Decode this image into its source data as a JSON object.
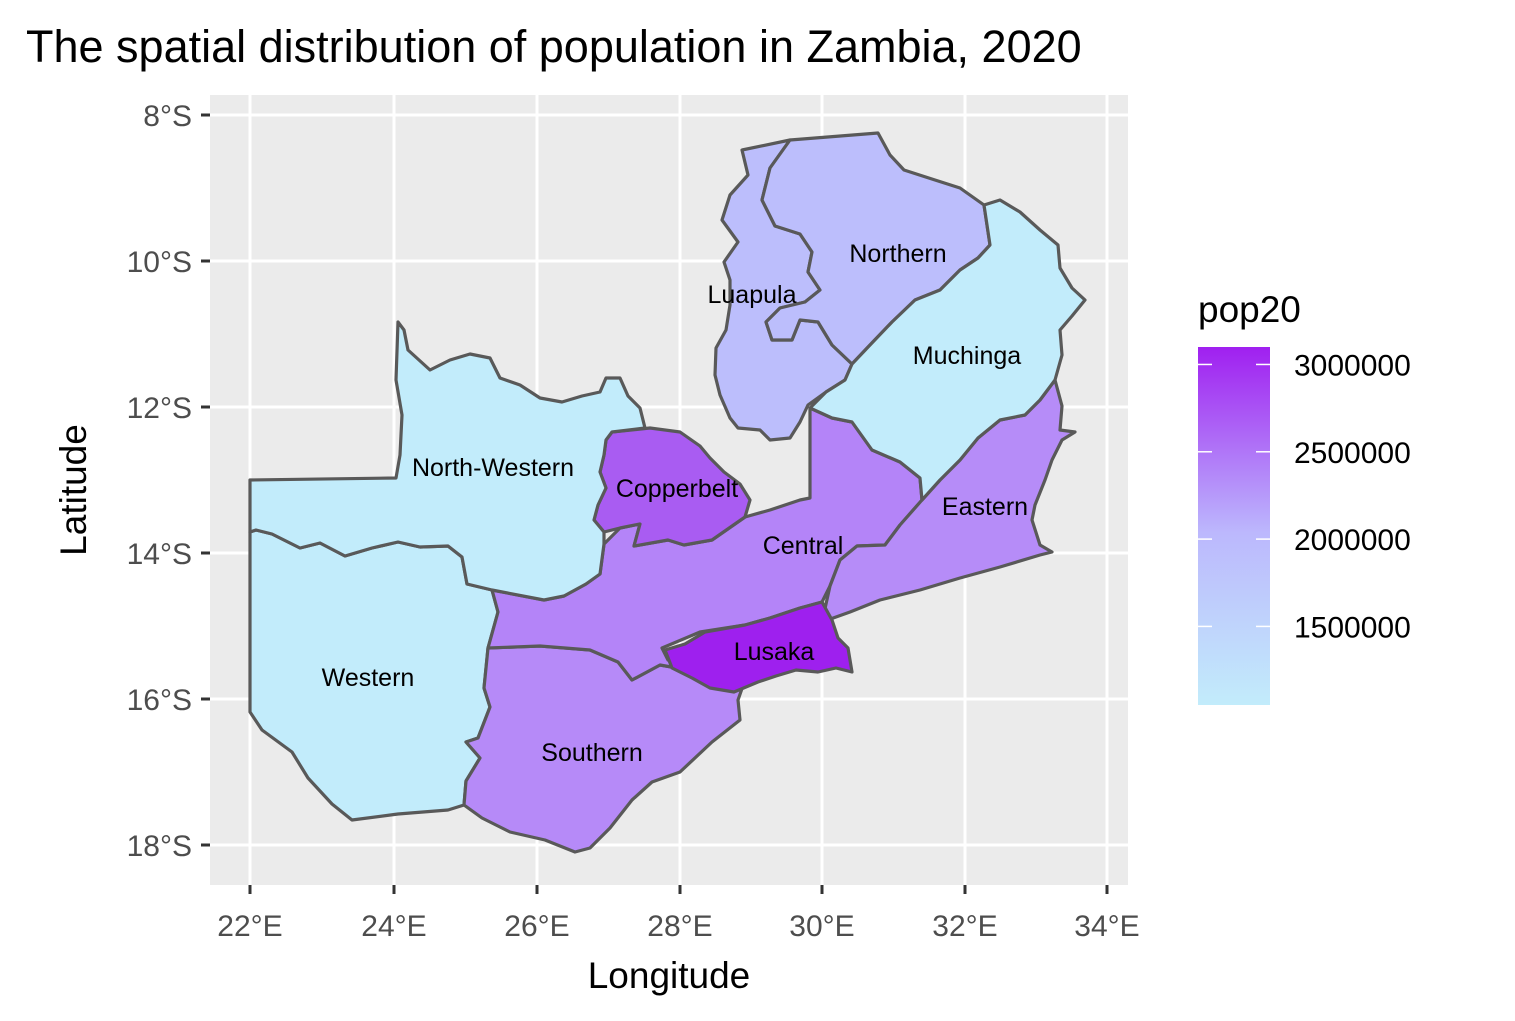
{
  "title": "The spatial distribution of population in Zambia, 2020",
  "x_axis": {
    "label": "Longitude",
    "ticks": [
      "22°E",
      "24°E",
      "26°E",
      "28°E",
      "30°E",
      "32°E",
      "34°E"
    ],
    "tick_values": [
      22,
      24,
      26,
      28,
      30,
      32,
      34
    ],
    "range": [
      21.4,
      34.3
    ]
  },
  "y_axis": {
    "label": "Latitude",
    "ticks": [
      "8°S",
      "10°S",
      "12°S",
      "14°S",
      "16°S",
      "18°S"
    ],
    "tick_values": [
      -8,
      -10,
      -12,
      -14,
      -16,
      -18
    ],
    "range": [
      -18.55,
      -7.65
    ]
  },
  "legend": {
    "title": "pop20",
    "labels": [
      "3000000",
      "2500000",
      "2000000",
      "1500000"
    ],
    "label_values": [
      3000000,
      2500000,
      2000000,
      1500000
    ],
    "min": 1050000,
    "max": 3100000,
    "color_low": "#C2ECFB",
    "color_mid": "#BCB8FD",
    "color_high": "#A020F0"
  },
  "regions": [
    {
      "name": "Northern",
      "label": "Northern",
      "fill": "#BCBEFC"
    },
    {
      "name": "Luapula",
      "label": "Luapula",
      "fill": "#BCBEFC"
    },
    {
      "name": "Muchinga",
      "label": "Muchinga",
      "fill": "#C2ECFB"
    },
    {
      "name": "North-Western",
      "label": "North-Western",
      "fill": "#C2ECFB"
    },
    {
      "name": "Copperbelt",
      "label": "Copperbelt",
      "fill": "#A95CF2"
    },
    {
      "name": "Central",
      "label": "Central",
      "fill": "#B484F8"
    },
    {
      "name": "Eastern",
      "label": "Eastern",
      "fill": "#B68CF8"
    },
    {
      "name": "Lusaka",
      "label": "Lusaka",
      "fill": "#9E20EE"
    },
    {
      "name": "Western",
      "label": "Western",
      "fill": "#C2ECFB"
    },
    {
      "name": "Southern",
      "label": "Southern",
      "fill": "#B68AF8"
    }
  ],
  "panel_background": "#EBEBEB"
}
